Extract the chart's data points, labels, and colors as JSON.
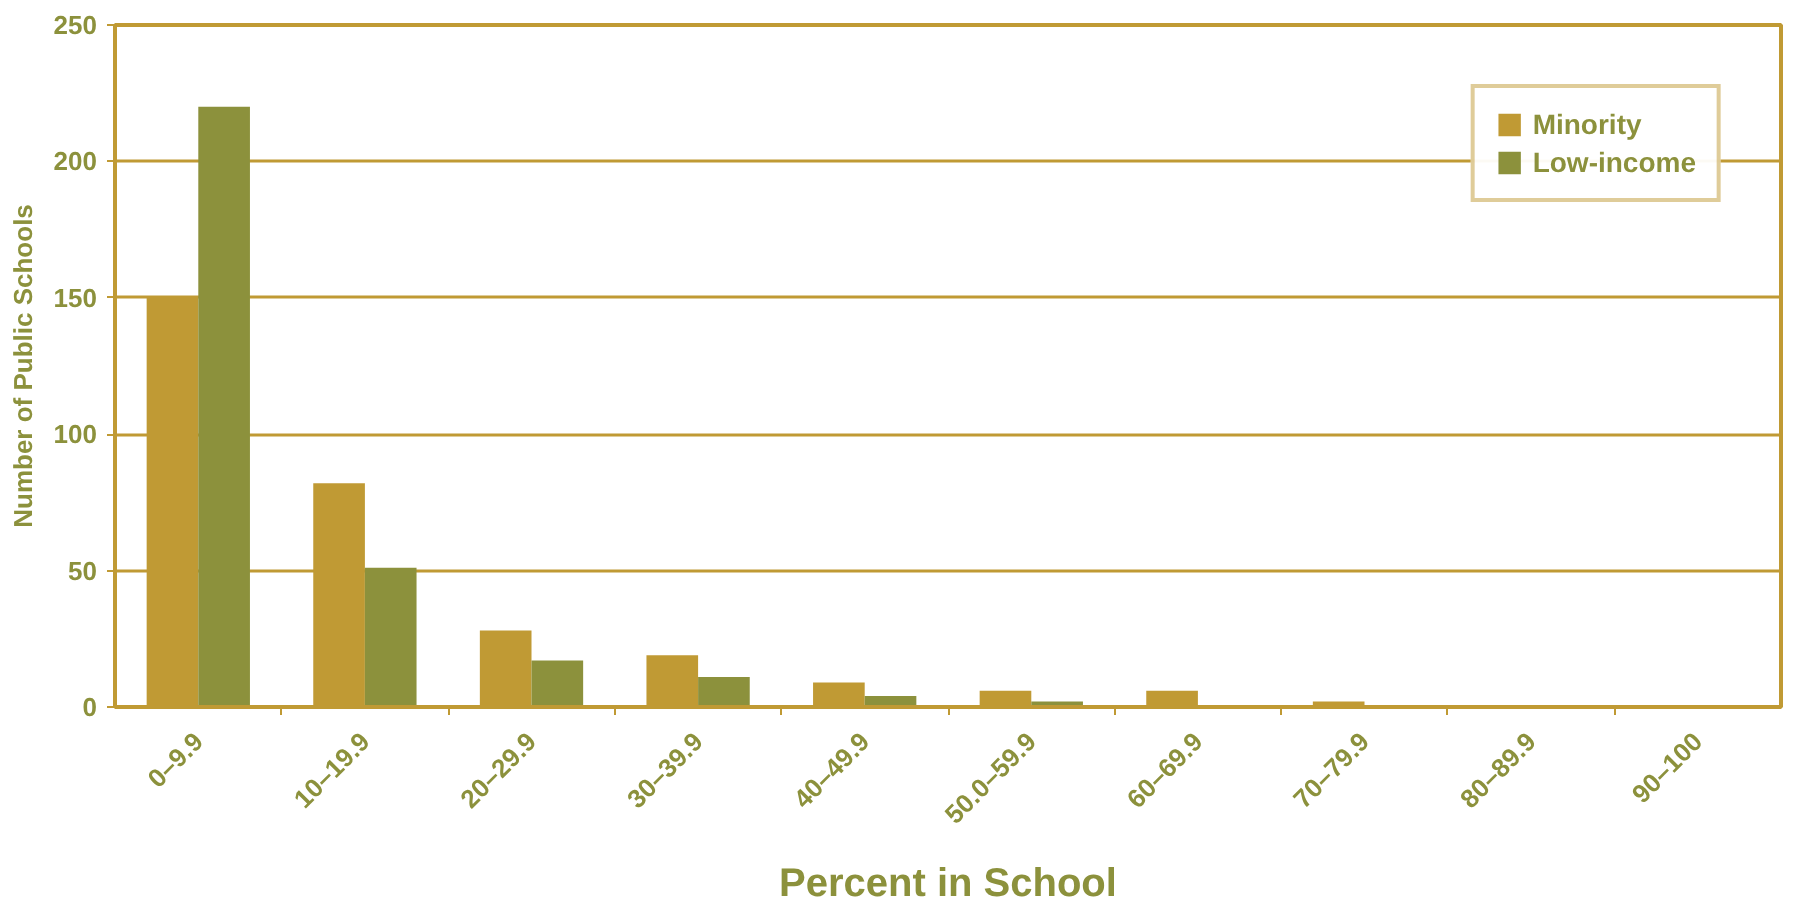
{
  "chart_data": {
    "type": "bar",
    "xlabel": "Percent in School",
    "ylabel": "Number of Public Schools",
    "categories": [
      "0–9.9",
      "10–19.9",
      "20–29.9",
      "30–39.9",
      "40–49.9",
      "50.0–59.9",
      "60–69.9",
      "70–79.9",
      "80–89.9",
      "90–100"
    ],
    "series": [
      {
        "name": "Minority",
        "color": "#c09a34",
        "values": [
          150,
          82,
          28,
          19,
          9,
          6,
          6,
          2,
          0,
          0
        ]
      },
      {
        "name": "Low-income",
        "color": "#8c913c",
        "values": [
          220,
          51,
          17,
          11,
          4,
          2,
          0,
          0,
          0,
          0
        ]
      }
    ],
    "ylim": [
      0,
      250
    ],
    "yticks": [
      0,
      50,
      100,
      150,
      200,
      250
    ],
    "grid": "y",
    "legend": "top right"
  }
}
